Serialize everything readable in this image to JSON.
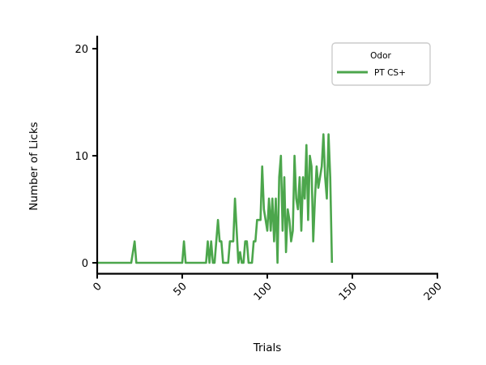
{
  "chart_data": {
    "type": "line",
    "xlabel": "Trials",
    "ylabel": "Number of Licks",
    "xlim": [
      0,
      200
    ],
    "ylim": [
      -1,
      21
    ],
    "xticks": [
      "0",
      "50",
      "100",
      "150",
      "200"
    ],
    "xtick_values": [
      0,
      50,
      100,
      150,
      200
    ],
    "yticks": [
      "0",
      "10",
      "20"
    ],
    "ytick_values": [
      0,
      10,
      20
    ],
    "xtick_rotation": 45,
    "grid": false,
    "legend": {
      "title": "Odor",
      "placement": "top-right"
    },
    "series": [
      {
        "name": "PT CS+",
        "color": "#4ca64c",
        "x": [
          0,
          1,
          2,
          3,
          4,
          5,
          6,
          7,
          8,
          9,
          10,
          11,
          12,
          13,
          14,
          15,
          16,
          17,
          18,
          19,
          20,
          21,
          22,
          23,
          24,
          25,
          26,
          27,
          28,
          29,
          30,
          31,
          32,
          33,
          34,
          35,
          36,
          37,
          38,
          39,
          40,
          41,
          42,
          43,
          44,
          45,
          46,
          47,
          48,
          49,
          50,
          51,
          52,
          53,
          54,
          55,
          56,
          57,
          58,
          59,
          60,
          61,
          62,
          63,
          64,
          65,
          66,
          67,
          68,
          69,
          70,
          71,
          72,
          73,
          74,
          75,
          76,
          77,
          78,
          79,
          80,
          81,
          82,
          83,
          84,
          85,
          86,
          87,
          88,
          89,
          90,
          91,
          92,
          93,
          94,
          95,
          96,
          97,
          98,
          99,
          100,
          101,
          102,
          103,
          104,
          105,
          106,
          107,
          108,
          109,
          110,
          111,
          112,
          113,
          114,
          115,
          116,
          117,
          118,
          119,
          120,
          121,
          122,
          123,
          124,
          125,
          126,
          127,
          128,
          129,
          130,
          131,
          132,
          133,
          134,
          135,
          136,
          137,
          138
        ],
        "values": [
          0,
          0,
          0,
          0,
          0,
          0,
          0,
          0,
          0,
          0,
          0,
          0,
          0,
          0,
          0,
          0,
          0,
          0,
          0,
          0,
          0,
          1,
          2,
          0,
          0,
          0,
          0,
          0,
          0,
          0,
          0,
          0,
          0,
          0,
          0,
          0,
          0,
          0,
          0,
          0,
          0,
          0,
          0,
          0,
          0,
          0,
          0,
          0,
          0,
          0,
          0,
          2,
          0,
          0,
          0,
          0,
          0,
          0,
          0,
          0,
          0,
          0,
          0,
          0,
          0,
          2,
          0,
          2,
          0,
          0,
          2,
          4,
          2,
          2,
          0,
          0,
          0,
          0,
          2,
          2,
          2,
          6,
          3,
          0,
          1,
          0,
          0,
          2,
          2,
          0,
          0,
          0,
          2,
          2,
          4,
          4,
          4,
          9,
          5,
          4,
          3,
          6,
          3,
          6,
          2,
          6,
          0,
          8,
          10,
          3,
          8,
          1,
          5,
          4,
          2,
          3,
          10,
          6,
          5,
          8,
          3,
          8,
          6,
          11,
          4,
          10,
          9,
          2,
          6,
          9,
          7,
          8,
          9,
          12,
          8,
          6,
          12,
          8,
          0
        ]
      }
    ]
  }
}
